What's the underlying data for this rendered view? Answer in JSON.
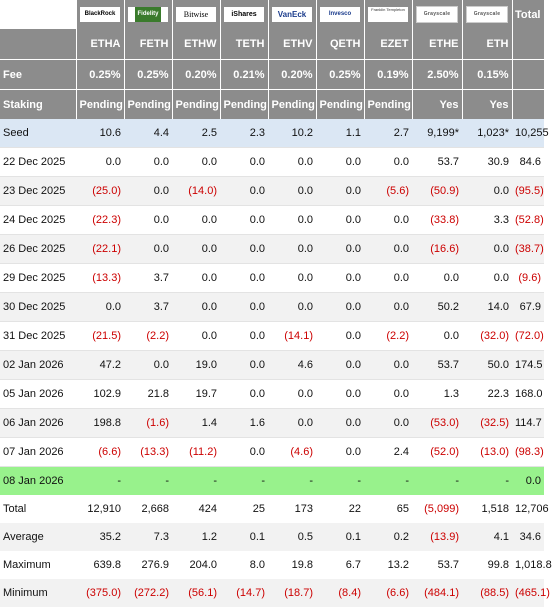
{
  "header": {
    "logos": [
      "BlackRock",
      "Fidelity",
      "Bitwise",
      "iShares",
      "VanEck",
      "Invesco",
      "Franklin Templeton",
      "Grayscale",
      "Grayscale"
    ],
    "total_label": "Total",
    "tickers": [
      "ETHA",
      "FETH",
      "ETHW",
      "TETH",
      "ETHV",
      "QETH",
      "EZET",
      "ETHE",
      "ETH"
    ]
  },
  "fee": {
    "label": "Fee",
    "values": [
      "0.25%",
      "0.25%",
      "0.20%",
      "0.21%",
      "0.20%",
      "0.25%",
      "0.19%",
      "2.50%",
      "0.15%",
      ""
    ]
  },
  "staking": {
    "label": "Staking",
    "values": [
      "Pending",
      "Pending",
      "Pending",
      "Pending",
      "Pending",
      "Pending",
      "Pending",
      "Yes",
      "Yes",
      ""
    ]
  },
  "seed": {
    "label": "Seed",
    "values": [
      "10.6",
      "4.4",
      "2.5",
      "2.3",
      "10.2",
      "1.1",
      "2.7",
      "9,199*",
      "1,023*",
      "10,255"
    ]
  },
  "rows": [
    {
      "label": "22 Dec 2025",
      "values": [
        "0.0",
        "0.0",
        "0.0",
        "0.0",
        "0.0",
        "0.0",
        "0.0",
        "53.7",
        "30.9",
        "84.6"
      ]
    },
    {
      "label": "23 Dec 2025",
      "values": [
        "(25.0)",
        "0.0",
        "(14.0)",
        "0.0",
        "0.0",
        "0.0",
        "(5.6)",
        "(50.9)",
        "0.0",
        "(95.5)"
      ]
    },
    {
      "label": "24 Dec 2025",
      "values": [
        "(22.3)",
        "0.0",
        "0.0",
        "0.0",
        "0.0",
        "0.0",
        "0.0",
        "(33.8)",
        "3.3",
        "(52.8)"
      ]
    },
    {
      "label": "26 Dec 2025",
      "values": [
        "(22.1)",
        "0.0",
        "0.0",
        "0.0",
        "0.0",
        "0.0",
        "0.0",
        "(16.6)",
        "0.0",
        "(38.7)"
      ]
    },
    {
      "label": "29 Dec 2025",
      "values": [
        "(13.3)",
        "3.7",
        "0.0",
        "0.0",
        "0.0",
        "0.0",
        "0.0",
        "0.0",
        "0.0",
        "(9.6)"
      ]
    },
    {
      "label": "30 Dec 2025",
      "values": [
        "0.0",
        "3.7",
        "0.0",
        "0.0",
        "0.0",
        "0.0",
        "0.0",
        "50.2",
        "14.0",
        "67.9"
      ]
    },
    {
      "label": "31 Dec 2025",
      "values": [
        "(21.5)",
        "(2.2)",
        "0.0",
        "0.0",
        "(14.1)",
        "0.0",
        "(2.2)",
        "0.0",
        "(32.0)",
        "(72.0)"
      ]
    },
    {
      "label": "02 Jan 2026",
      "values": [
        "47.2",
        "0.0",
        "19.0",
        "0.0",
        "4.6",
        "0.0",
        "0.0",
        "53.7",
        "50.0",
        "174.5"
      ]
    },
    {
      "label": "05 Jan 2026",
      "values": [
        "102.9",
        "21.8",
        "19.7",
        "0.0",
        "0.0",
        "0.0",
        "0.0",
        "1.3",
        "22.3",
        "168.0"
      ]
    },
    {
      "label": "06 Jan 2026",
      "values": [
        "198.8",
        "(1.6)",
        "1.4",
        "1.6",
        "0.0",
        "0.0",
        "0.0",
        "(53.0)",
        "(32.5)",
        "114.7"
      ]
    },
    {
      "label": "07 Jan 2026",
      "values": [
        "(6.6)",
        "(13.3)",
        "(11.2)",
        "0.0",
        "(4.6)",
        "0.0",
        "2.4",
        "(52.0)",
        "(13.0)",
        "(98.3)"
      ]
    },
    {
      "label": "08 Jan 2026",
      "values": [
        "-",
        "-",
        "-",
        "-",
        "-",
        "-",
        "-",
        "-",
        "-",
        "0.0"
      ]
    }
  ],
  "stats": [
    {
      "label": "Total",
      "values": [
        "12,910",
        "2,668",
        "424",
        "25",
        "173",
        "22",
        "65",
        "(5,099)",
        "1,518",
        "12,706"
      ]
    },
    {
      "label": "Average",
      "values": [
        "35.2",
        "7.3",
        "1.2",
        "0.1",
        "0.5",
        "0.1",
        "0.2",
        "(13.9)",
        "4.1",
        "34.6"
      ]
    },
    {
      "label": "Maximum",
      "values": [
        "639.8",
        "276.9",
        "204.0",
        "8.0",
        "19.8",
        "6.7",
        "13.2",
        "53.7",
        "99.8",
        "1,018.8"
      ]
    },
    {
      "label": "Minimum",
      "values": [
        "(375.0)",
        "(272.2)",
        "(56.1)",
        "(14.7)",
        "(18.7)",
        "(8.4)",
        "(6.6)",
        "(484.1)",
        "(88.5)",
        "(465.1)"
      ]
    }
  ]
}
